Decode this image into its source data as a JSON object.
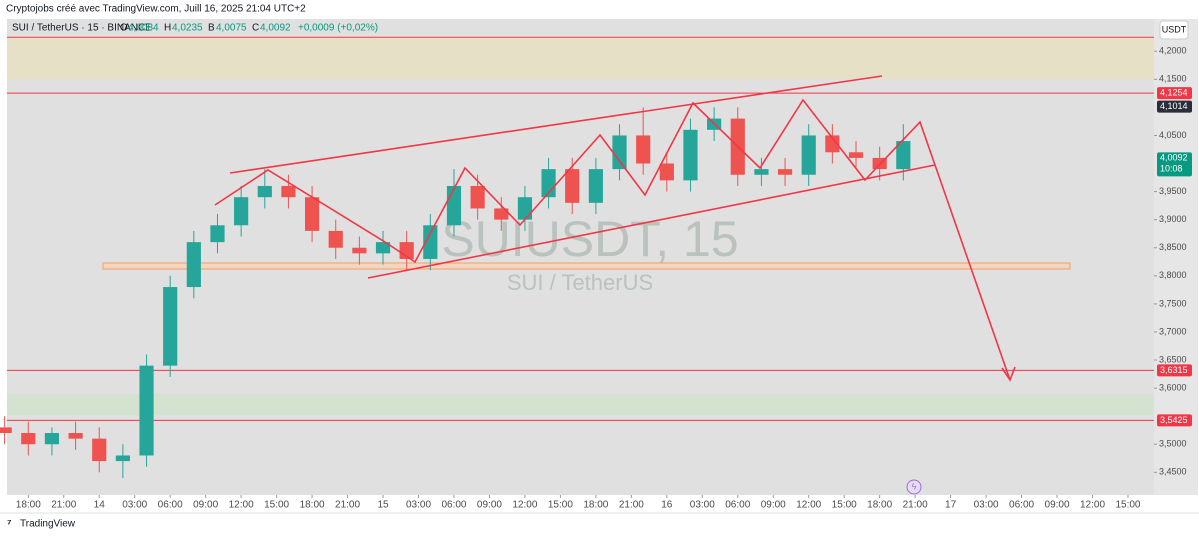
{
  "header": {
    "credit": "Cryptojobs créé avec TradingView.com, Juill 16, 2025 21:04 UTC+2",
    "symbol": "SUI / TetherUS · 15 · BINANCE",
    "ohlc": [
      {
        "key": "O",
        "value": "4,0084"
      },
      {
        "key": "H",
        "value": "4,0235"
      },
      {
        "key": "B",
        "value": "4,0075"
      },
      {
        "key": "C",
        "value": "4,0092"
      }
    ],
    "change": "+0,0009 (+0,02%)",
    "currency": "USDT",
    "watermark": "SUIUSDT, 15",
    "watermark_sub": "SUI / TetherUS",
    "brand": "TradingView"
  },
  "chart_data": {
    "type": "candlestick",
    "up_color": "#26a69a",
    "down_color": "#ef5350",
    "x": [
      -2,
      0,
      2,
      4,
      6,
      8,
      10,
      12,
      14,
      16,
      18,
      20,
      22,
      24,
      26,
      28,
      30,
      32,
      34,
      36,
      38,
      40,
      42,
      44,
      46,
      48,
      50,
      52,
      54,
      56,
      58,
      60,
      62,
      64,
      66,
      68,
      70,
      72,
      74
    ],
    "open": [
      3.53,
      3.52,
      3.5,
      3.52,
      3.51,
      3.47,
      3.48,
      3.64,
      3.78,
      3.86,
      3.89,
      3.94,
      3.96,
      3.94,
      3.88,
      3.85,
      3.84,
      3.86,
      3.83,
      3.89,
      3.96,
      3.92,
      3.9,
      3.94,
      3.99,
      3.93,
      3.99,
      4.05,
      4.0,
      3.97,
      4.06,
      4.08,
      3.98,
      3.99,
      3.98,
      4.05,
      4.02,
      4.01,
      3.99
    ],
    "high": [
      3.55,
      3.54,
      3.53,
      3.54,
      3.53,
      3.5,
      3.66,
      3.8,
      3.88,
      3.91,
      3.96,
      3.99,
      3.98,
      3.96,
      3.9,
      3.87,
      3.88,
      3.88,
      3.91,
      3.99,
      3.98,
      3.94,
      3.96,
      4.01,
      4.01,
      4.01,
      4.07,
      4.1,
      4.02,
      4.08,
      4.1,
      4.1,
      4.01,
      4.01,
      4.07,
      4.07,
      4.04,
      4.03,
      4.07
    ],
    "low": [
      3.5,
      3.48,
      3.48,
      3.49,
      3.45,
      3.44,
      3.46,
      3.62,
      3.76,
      3.84,
      3.87,
      3.92,
      3.92,
      3.86,
      3.83,
      3.82,
      3.82,
      3.81,
      3.81,
      3.87,
      3.9,
      3.88,
      3.88,
      3.92,
      3.91,
      3.91,
      3.97,
      3.98,
      3.95,
      3.95,
      4.04,
      3.96,
      3.96,
      3.96,
      3.96,
      4.0,
      3.99,
      3.97,
      3.97
    ],
    "close": [
      3.52,
      3.5,
      3.52,
      3.51,
      3.47,
      3.48,
      3.64,
      3.78,
      3.86,
      3.89,
      3.94,
      3.96,
      3.94,
      3.88,
      3.85,
      3.84,
      3.86,
      3.83,
      3.89,
      3.96,
      3.92,
      3.9,
      3.94,
      3.99,
      3.93,
      3.99,
      4.05,
      4.0,
      3.97,
      4.06,
      4.08,
      3.98,
      3.99,
      3.98,
      4.05,
      4.02,
      4.01,
      3.99,
      4.04
    ],
    "xlim": [
      -1.8,
      95.2
    ],
    "xticks": [
      {
        "value": 0,
        "label": "18:00"
      },
      {
        "value": 3,
        "label": "21:00"
      },
      {
        "value": 6,
        "label": "14"
      },
      {
        "value": 9,
        "label": "03:00"
      },
      {
        "value": 12,
        "label": "06:00"
      },
      {
        "value": 15,
        "label": "09:00"
      },
      {
        "value": 18,
        "label": "12:00"
      },
      {
        "value": 21,
        "label": "15:00"
      },
      {
        "value": 24,
        "label": "18:00"
      },
      {
        "value": 27,
        "label": "21:00"
      },
      {
        "value": 30,
        "label": "15"
      },
      {
        "value": 33,
        "label": "03:00"
      },
      {
        "value": 36,
        "label": "06:00"
      },
      {
        "value": 39,
        "label": "09:00"
      },
      {
        "value": 42,
        "label": "12:00"
      },
      {
        "value": 45,
        "label": "15:00"
      },
      {
        "value": 48,
        "label": "18:00"
      },
      {
        "value": 51,
        "label": "21:00"
      },
      {
        "value": 54,
        "label": "16"
      },
      {
        "value": 57,
        "label": "03:00"
      },
      {
        "value": 60,
        "label": "06:00"
      },
      {
        "value": 63,
        "label": "09:00"
      },
      {
        "value": 66,
        "label": "12:00"
      },
      {
        "value": 69,
        "label": "15:00"
      },
      {
        "value": 72,
        "label": "18:00"
      },
      {
        "value": 75,
        "label": "21:00"
      },
      {
        "value": 78,
        "label": "17"
      },
      {
        "value": 81,
        "label": "03:00"
      },
      {
        "value": 84,
        "label": "06:00"
      },
      {
        "value": 87,
        "label": "09:00"
      },
      {
        "value": 90,
        "label": "12:00"
      },
      {
        "value": 93,
        "label": "15:00"
      }
    ],
    "ylim": [
      3.4096,
      4.2574
    ],
    "yticks": [
      {
        "value": 4.2,
        "label": "4,2000"
      },
      {
        "value": 4.15,
        "label": "4,1500"
      },
      {
        "value": 4.05,
        "label": "4,0500"
      },
      {
        "value": 3.95,
        "label": "3,9500"
      },
      {
        "value": 3.9,
        "label": "3,9000"
      },
      {
        "value": 3.85,
        "label": "3,8500"
      },
      {
        "value": 3.8,
        "label": "3,8000"
      },
      {
        "value": 3.75,
        "label": "3,7500"
      },
      {
        "value": 3.7,
        "label": "3,7000"
      },
      {
        "value": 3.65,
        "label": "3,6500"
      },
      {
        "value": 3.6,
        "label": "3,6000"
      },
      {
        "value": 3.5,
        "label": "3,5000"
      },
      {
        "value": 3.45,
        "label": "3,4500"
      }
    ],
    "zones": [
      {
        "from": 4.225,
        "to": 4.15,
        "color": "#e6e1c6"
      },
      {
        "from": 3.59,
        "to": 3.552,
        "color": "#d3e3cf"
      }
    ],
    "price_lines": [
      {
        "value": 4.225,
        "color": "#f23645"
      },
      {
        "value": 4.1254,
        "label": "4,1254",
        "color": "#f23645"
      },
      {
        "value": 3.6315,
        "label": "3,6315",
        "color": "#f23645"
      },
      {
        "value": 3.5425,
        "label": "3,5425",
        "color": "#f23645"
      }
    ],
    "price_tags": [
      {
        "value": 4.1014,
        "label": "4,1014",
        "color": "#2a2e39"
      },
      {
        "value": 4.0092,
        "label": "4,0092",
        "sub": "10:08",
        "color": "#089981"
      }
    ]
  }
}
